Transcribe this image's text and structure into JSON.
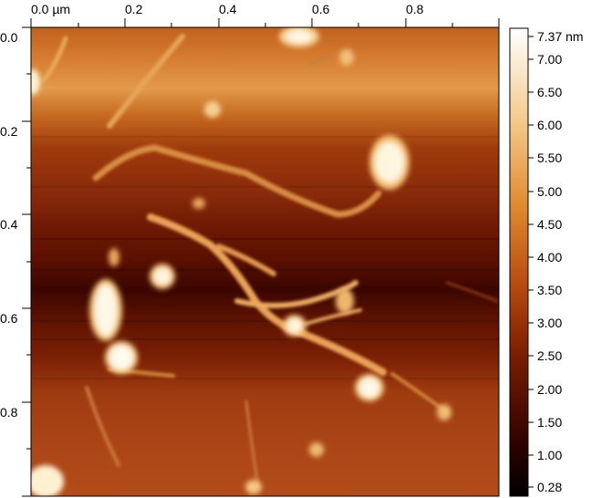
{
  "image": {
    "type": "afm-height-map",
    "x_axis": {
      "ticks": [
        "0.0 µm",
        "0.2",
        "0.4",
        "0.6",
        "0.8"
      ]
    },
    "y_axis": {
      "ticks": [
        "0.0",
        "0.2",
        "0.4",
        "0.6",
        "0.8"
      ]
    },
    "colorbar": {
      "ticks": [
        "7.37 nm",
        "7.00",
        "6.50",
        "6.00",
        "5.50",
        "5.00",
        "4.50",
        "4.00",
        "3.50",
        "3.00",
        "2.50",
        "2.00",
        "1.50",
        "1.00",
        "0.28"
      ],
      "colors": [
        "#000000",
        "#2b0000",
        "#7a1d00",
        "#b84a0e",
        "#e08a2e",
        "#f5c98a",
        "#ffffff"
      ]
    },
    "palette": {
      "background_dark": "#3a0a00",
      "background_mid": "#8c2c08",
      "band_light": "#d8792d",
      "feature": "#f2b15a",
      "peak": "#fff4dc"
    }
  }
}
